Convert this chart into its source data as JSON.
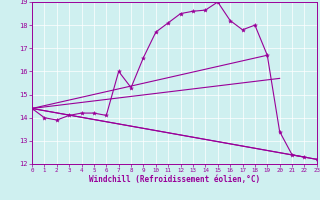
{
  "xlabel": "Windchill (Refroidissement éolien,°C)",
  "background_color": "#cff0f0",
  "line_color": "#990099",
  "xlim": [
    0,
    23
  ],
  "ylim": [
    12,
    19
  ],
  "xticks": [
    0,
    1,
    2,
    3,
    4,
    5,
    6,
    7,
    8,
    9,
    10,
    11,
    12,
    13,
    14,
    15,
    16,
    17,
    18,
    19,
    20,
    21,
    22,
    23
  ],
  "yticks": [
    12,
    13,
    14,
    15,
    16,
    17,
    18,
    19
  ],
  "line1_x": [
    0,
    1,
    2,
    3,
    4,
    5,
    6,
    7,
    8,
    9,
    10,
    11,
    12,
    13,
    14,
    15,
    16,
    17,
    18,
    19,
    20,
    21,
    22,
    23
  ],
  "line1_y": [
    14.4,
    14.0,
    13.9,
    14.1,
    14.2,
    14.2,
    14.1,
    16.0,
    15.3,
    16.6,
    17.7,
    18.1,
    18.5,
    18.6,
    18.65,
    19.0,
    18.2,
    17.8,
    18.0,
    16.7,
    13.4,
    12.4,
    12.3,
    12.2
  ],
  "line2_x": [
    0,
    23
  ],
  "line2_y": [
    14.4,
    12.2
  ],
  "line3_x": [
    0,
    22
  ],
  "line3_y": [
    14.4,
    12.3
  ],
  "line4_x": [
    0,
    20
  ],
  "line4_y": [
    14.4,
    15.7
  ],
  "line5_x": [
    0,
    19
  ],
  "line5_y": [
    14.4,
    16.7
  ]
}
